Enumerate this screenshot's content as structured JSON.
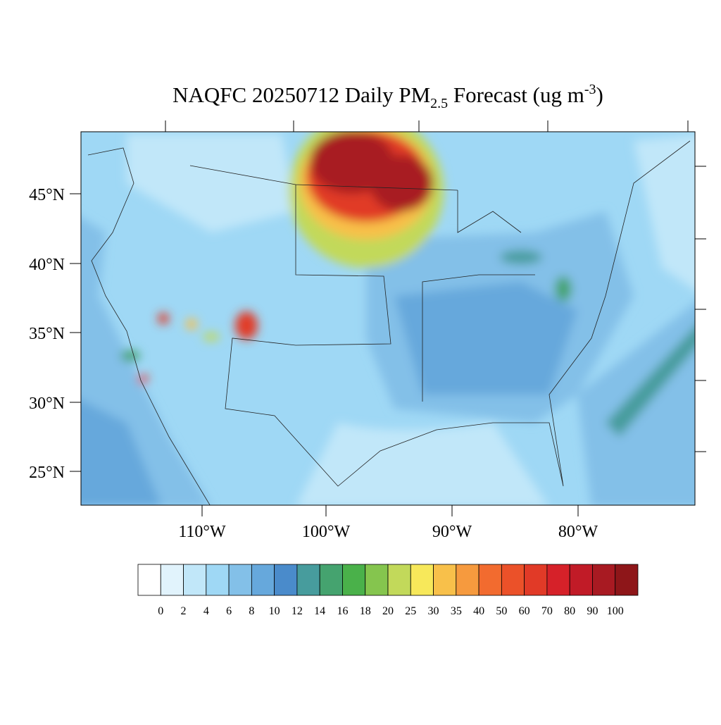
{
  "title": {
    "main": "NAQFC 20250712 Daily PM",
    "sub": "2.5",
    "rest": " Forecast (ug m",
    "sup": "-3",
    "end": ")"
  },
  "lat_labels": [
    "45°N",
    "40°N",
    "35°N",
    "30°N",
    "25°N"
  ],
  "lon_labels": [
    "110°W",
    "100°W",
    "90°W",
    "80°W"
  ],
  "colorbar": {
    "levels": [
      0,
      2,
      4,
      6,
      8,
      10,
      12,
      14,
      16,
      18,
      20,
      25,
      30,
      35,
      40,
      50,
      60,
      70,
      80,
      90,
      100
    ],
    "colors": [
      "#ffffff",
      "#e1f3fc",
      "#c1e7f9",
      "#9fd8f5",
      "#83c0e8",
      "#66a8dc",
      "#4a8bcb",
      "#479c9d",
      "#45a36f",
      "#4ab14a",
      "#85c54e",
      "#c2d95a",
      "#f7e85a",
      "#f8c04a",
      "#f69a3e",
      "#f26b2f",
      "#eb5129",
      "#e13a27",
      "#d62129",
      "#c11b27",
      "#a81a22",
      "#8e1619"
    ]
  }
}
